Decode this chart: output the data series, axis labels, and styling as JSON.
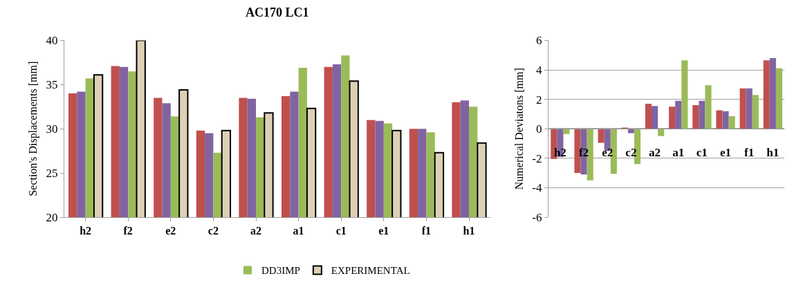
{
  "chart_data": [
    {
      "type": "bar",
      "title": "AC170 LC1",
      "ylabel": "Section's Displacements [mm]",
      "categories": [
        "h2",
        "f2",
        "e2",
        "c2",
        "a2",
        "a1",
        "c1",
        "e1",
        "f1",
        "h1"
      ],
      "series": [
        {
          "color": "#c0504d",
          "values": [
            34.0,
            37.1,
            33.5,
            29.8,
            33.5,
            33.7,
            37.0,
            31.0,
            30.0,
            33.0
          ]
        },
        {
          "color": "#8064a2",
          "values": [
            34.2,
            37.0,
            32.9,
            29.5,
            33.4,
            34.2,
            37.3,
            30.9,
            30.0,
            33.2
          ]
        },
        {
          "name": "DD3IMP",
          "color": "#9bbb59",
          "values": [
            35.7,
            36.5,
            31.4,
            27.3,
            31.3,
            36.9,
            38.3,
            30.6,
            29.6,
            32.5
          ]
        },
        {
          "name": "EXPERIMENTAL",
          "color": "#ddd0b5",
          "values": [
            36.1,
            40.0,
            34.4,
            29.8,
            31.8,
            32.3,
            35.4,
            29.8,
            27.3,
            28.4
          ]
        }
      ],
      "ylim": [
        20,
        40
      ],
      "yticks": [
        20,
        25,
        30,
        35,
        40
      ],
      "grid": false,
      "legend": "bottom"
    },
    {
      "type": "bar",
      "ylabel": "Numerical Deviatons [mm]",
      "categories": [
        "h2",
        "f2",
        "e2",
        "c2",
        "a2",
        "a1",
        "c1",
        "e1",
        "f1",
        "h1"
      ],
      "series": [
        {
          "color": "#c0504d",
          "values": [
            -2.05,
            -3.0,
            -0.95,
            0.05,
            1.7,
            1.5,
            1.6,
            1.25,
            2.75,
            4.65
          ]
        },
        {
          "color": "#8064a2",
          "values": [
            -1.9,
            -3.1,
            -1.5,
            -0.3,
            1.55,
            1.9,
            1.9,
            1.2,
            2.75,
            4.8
          ]
        },
        {
          "color": "#9bbb59",
          "values": [
            -0.35,
            -3.5,
            -3.05,
            -2.4,
            -0.5,
            4.65,
            2.95,
            0.85,
            2.3,
            4.1
          ]
        }
      ],
      "ylim": [
        -6,
        6
      ],
      "yticks": [
        -6,
        -4,
        -2,
        0,
        2,
        4,
        6
      ],
      "grid": "y",
      "legend": false
    }
  ]
}
